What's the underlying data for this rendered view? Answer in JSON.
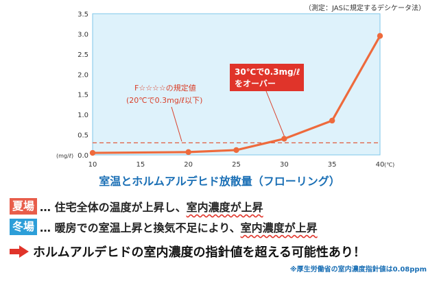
{
  "chart_data": {
    "type": "line",
    "x": [
      10,
      20,
      25,
      30,
      35,
      40
    ],
    "y": [
      0.05,
      0.07,
      0.12,
      0.4,
      0.85,
      2.95
    ],
    "x_ticks": [
      "10",
      "15",
      "20",
      "25",
      "30",
      "35",
      "40"
    ],
    "x_unit": "(℃)",
    "y_ticks": [
      "0.0",
      "0.5",
      "1.0",
      "1.5",
      "2.0",
      "2.5",
      "3.0",
      "3.5"
    ],
    "y_unit": "(mg/ℓ)",
    "xlim": [
      10,
      40
    ],
    "ylim": [
      0,
      3.5
    ],
    "threshold": 0.3,
    "grid": false,
    "title": "室温とホルムアルデヒド放散量（フローリング）",
    "annotations": {
      "threshold_label_1": "F☆☆☆☆の規定値",
      "threshold_label_2": "(20℃で0.3mg/ℓ以下)",
      "over_label_1": "30℃で0.3mg/ℓ",
      "over_label_2": "をオーバー"
    },
    "colors": {
      "plot_bg": "#def2fb",
      "line": "#ee6a3c",
      "threshold": "#e05a3c",
      "callout_bg": "#e0342a"
    }
  },
  "measure_note": "（測定：JASに規定するデシケータ法）",
  "summer": {
    "badge": "夏場",
    "text": "… 住宅全体の温度が上昇し、",
    "highlight": "室内濃度が上昇"
  },
  "winter": {
    "badge": "冬場",
    "text": "… 暖房での室温上昇と換気不足により、",
    "highlight": "室内濃度が上昇"
  },
  "conclusion": "ホルムアルデヒドの室内濃度の指針値を超える可能性あり！",
  "footnote": "※厚生労働省の室内濃度指針値は0.08ppm"
}
